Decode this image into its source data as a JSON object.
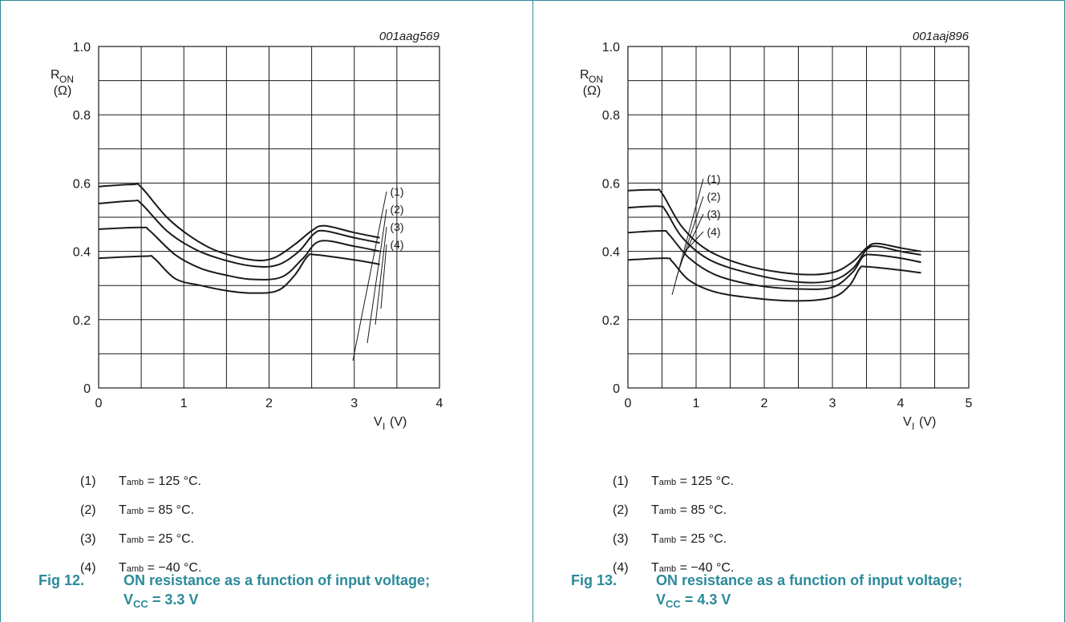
{
  "chart_data": [
    {
      "type": "line",
      "id_code": "001aag569",
      "ylabel": "R",
      "ylabel_sub": "ON",
      "ylabel_unit": "(Ω)",
      "xlabel": "V",
      "xlabel_sub": "I",
      "xlabel_unit": "(V)",
      "xlim": [
        0,
        4
      ],
      "ylim": [
        0,
        1.0
      ],
      "xticks": [
        "0",
        "1",
        "2",
        "3",
        "4"
      ],
      "yticks": [
        "0",
        "0.2",
        "0.4",
        "0.6",
        "0.8",
        "1.0"
      ],
      "grid": true,
      "series": [
        {
          "name": "(1)",
          "x": [
            0,
            0.4,
            0.5,
            0.8,
            1.1,
            1.4,
            1.8,
            2.05,
            2.3,
            2.5,
            2.65,
            3.0,
            3.3
          ],
          "y": [
            0.59,
            0.596,
            0.588,
            0.5,
            0.44,
            0.4,
            0.375,
            0.38,
            0.42,
            0.46,
            0.475,
            0.455,
            0.44
          ]
        },
        {
          "name": "(2)",
          "x": [
            0,
            0.4,
            0.5,
            0.8,
            1.1,
            1.4,
            1.8,
            2.1,
            2.35,
            2.52,
            2.65,
            3.0,
            3.3
          ],
          "y": [
            0.54,
            0.548,
            0.54,
            0.46,
            0.41,
            0.38,
            0.357,
            0.36,
            0.4,
            0.45,
            0.46,
            0.44,
            0.425
          ]
        },
        {
          "name": "(3)",
          "x": [
            0,
            0.5,
            0.6,
            0.9,
            1.2,
            1.5,
            1.8,
            2.15,
            2.4,
            2.6,
            3.0,
            3.3
          ],
          "y": [
            0.465,
            0.47,
            0.46,
            0.39,
            0.35,
            0.33,
            0.318,
            0.325,
            0.38,
            0.43,
            0.415,
            0.4
          ]
        },
        {
          "name": "(4)",
          "x": [
            0,
            0.55,
            0.65,
            0.9,
            1.2,
            1.5,
            1.8,
            2.1,
            2.3,
            2.45,
            2.55,
            3.0,
            3.3
          ],
          "y": [
            0.38,
            0.386,
            0.38,
            0.32,
            0.3,
            0.285,
            0.278,
            0.285,
            0.33,
            0.385,
            0.39,
            0.375,
            0.362
          ]
        }
      ],
      "labels": [
        "(1)",
        "(2)",
        "(3)",
        "(4)"
      ],
      "legend": [
        {
          "num": "(1)",
          "t": "T",
          "sub": "amb",
          "val": "= 125 °C."
        },
        {
          "num": "(2)",
          "t": "T",
          "sub": "amb",
          "val": "= 85 °C."
        },
        {
          "num": "(3)",
          "t": "T",
          "sub": "amb",
          "val": "= 25 °C."
        },
        {
          "num": "(4)",
          "t": "T",
          "sub": "amb",
          "val": "= −40 °C."
        }
      ],
      "caption_fig": "Fig 12.",
      "caption_title": "ON resistance as a function of input voltage;",
      "caption_vcc": "V",
      "caption_vcc_sub": "CC",
      "caption_vcc_val": "= 3.3 V"
    },
    {
      "type": "line",
      "id_code": "001aaj896",
      "ylabel": "R",
      "ylabel_sub": "ON",
      "ylabel_unit": "(Ω)",
      "xlabel": "V",
      "xlabel_sub": "I",
      "xlabel_unit": "(V)",
      "xlim": [
        0,
        5
      ],
      "ylim": [
        0,
        1.0
      ],
      "xticks": [
        "0",
        "1",
        "2",
        "3",
        "4",
        "5"
      ],
      "yticks": [
        "0",
        "0.2",
        "0.4",
        "0.6",
        "0.8",
        "1.0"
      ],
      "grid": true,
      "series": [
        {
          "name": "(1)",
          "x": [
            0,
            0.4,
            0.5,
            0.8,
            1.2,
            1.8,
            2.5,
            3.0,
            3.3,
            3.5,
            3.65,
            4.0,
            4.3
          ],
          "y": [
            0.578,
            0.58,
            0.57,
            0.47,
            0.4,
            0.355,
            0.333,
            0.338,
            0.37,
            0.41,
            0.423,
            0.41,
            0.4
          ]
        },
        {
          "name": "(2)",
          "x": [
            0,
            0.45,
            0.55,
            0.8,
            1.2,
            1.8,
            2.5,
            3.0,
            3.3,
            3.5,
            3.65,
            4.0,
            4.3
          ],
          "y": [
            0.528,
            0.532,
            0.52,
            0.44,
            0.375,
            0.335,
            0.31,
            0.315,
            0.35,
            0.405,
            0.415,
            0.4,
            0.39
          ]
        },
        {
          "name": "(3)",
          "x": [
            0,
            0.5,
            0.6,
            0.9,
            1.3,
            1.9,
            2.5,
            3.0,
            3.3,
            3.45,
            3.6,
            4.0,
            4.3
          ],
          "y": [
            0.455,
            0.46,
            0.45,
            0.38,
            0.33,
            0.3,
            0.29,
            0.295,
            0.34,
            0.385,
            0.39,
            0.38,
            0.368
          ]
        },
        {
          "name": "(4)",
          "x": [
            0,
            0.55,
            0.65,
            0.9,
            1.3,
            1.9,
            2.5,
            3.0,
            3.25,
            3.4,
            3.5,
            4.0,
            4.3
          ],
          "y": [
            0.375,
            0.38,
            0.37,
            0.315,
            0.28,
            0.262,
            0.255,
            0.265,
            0.3,
            0.35,
            0.355,
            0.345,
            0.337
          ]
        }
      ],
      "labels": [
        "(1)",
        "(2)",
        "(3)",
        "(4)"
      ],
      "legend": [
        {
          "num": "(1)",
          "t": "T",
          "sub": "amb",
          "val": "= 125 °C."
        },
        {
          "num": "(2)",
          "t": "T",
          "sub": "amb",
          "val": "= 85 °C."
        },
        {
          "num": "(3)",
          "t": "T",
          "sub": "amb",
          "val": "= 25 °C."
        },
        {
          "num": "(4)",
          "t": "T",
          "sub": "amb",
          "val": "= −40 °C."
        }
      ],
      "caption_fig": "Fig 13.",
      "caption_title": "ON resistance as a function of input voltage;",
      "caption_vcc": "V",
      "caption_vcc_sub": "CC",
      "caption_vcc_val": "= 4.3 V"
    }
  ]
}
